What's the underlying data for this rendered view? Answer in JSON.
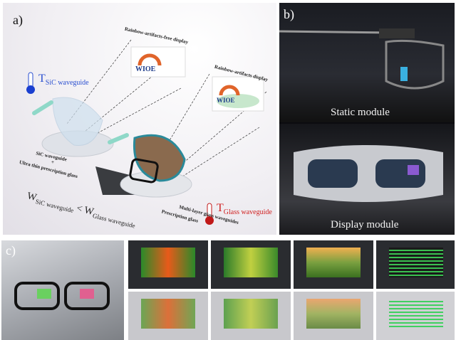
{
  "panel_a": {
    "label": "a)",
    "rainbow_free": "Rainbow-artifacts-free display",
    "rainbow": "Rainbow-artifacts display",
    "t_sic": "T",
    "t_sic_sub": "SiC waveguide",
    "t_glass": "T",
    "t_glass_sub": "Glass waveguide",
    "sic_label_1": "SiC waveguide",
    "sic_label_2": "+",
    "sic_label_3": "Ultra thin prescription glass",
    "multi_layer": "Multi-layer glass waveguides",
    "prescription": "Prescription glass",
    "w1": "W",
    "w1_sub": "SiC waveguide",
    "lt": "<",
    "w2": "W",
    "w2_sub": "Glass waveguide",
    "logo_text": "WIOE",
    "colors": {
      "sic": "#2a4fd0",
      "glass": "#d02020"
    }
  },
  "panel_b": {
    "label": "b)",
    "static": "Static module",
    "display": "Display module"
  },
  "panel_c": {
    "label": "c)"
  }
}
